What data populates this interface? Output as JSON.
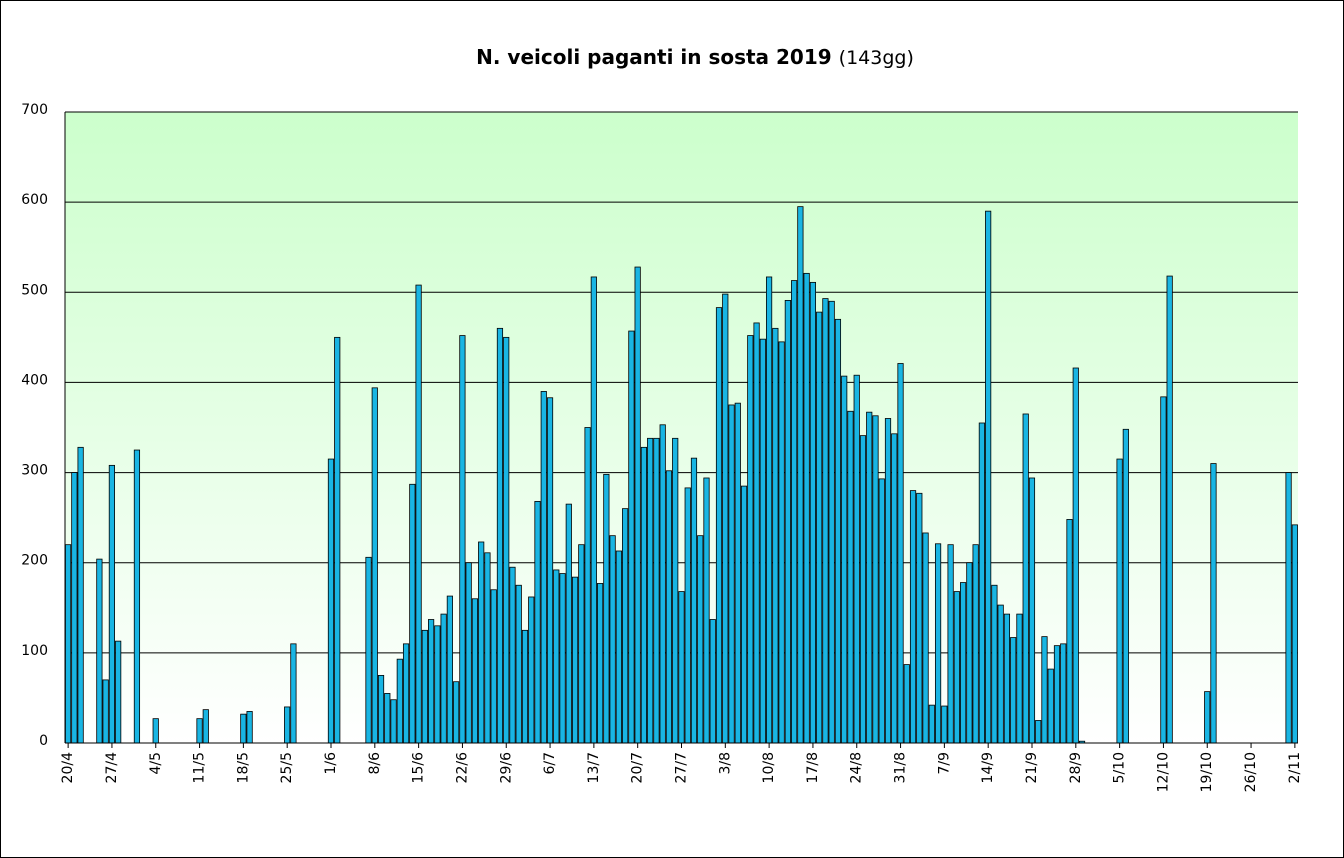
{
  "chart_data": {
    "type": "bar",
    "title": "N. veicoli paganti in sosta 2019",
    "title_note": "(143gg)",
    "color": "#19b5e3",
    "grid": true,
    "ylim": [
      0,
      700
    ],
    "yticks": [
      0,
      100,
      200,
      300,
      400,
      500,
      600,
      700
    ],
    "categories": [
      "20/4",
      null,
      null,
      null,
      null,
      null,
      null,
      "27/4",
      null,
      null,
      null,
      null,
      null,
      null,
      "4/5",
      null,
      null,
      null,
      null,
      null,
      null,
      "11/5",
      null,
      null,
      null,
      null,
      null,
      null,
      "18/5",
      null,
      null,
      null,
      null,
      null,
      null,
      "25/5",
      null,
      null,
      null,
      null,
      null,
      null,
      "1/6",
      null,
      null,
      null,
      null,
      null,
      null,
      "8/6",
      null,
      null,
      null,
      null,
      null,
      null,
      "15/6",
      null,
      null,
      null,
      null,
      null,
      null,
      "22/6",
      null,
      null,
      null,
      null,
      null,
      null,
      "29/6",
      null,
      null,
      null,
      null,
      null,
      null,
      "6/7",
      null,
      null,
      null,
      null,
      null,
      null,
      "13/7",
      null,
      null,
      null,
      null,
      null,
      null,
      "20/7",
      null,
      null,
      null,
      null,
      null,
      null,
      "27/7",
      null,
      null,
      null,
      null,
      null,
      null,
      "3/8",
      null,
      null,
      null,
      null,
      null,
      null,
      "10/8",
      null,
      null,
      null,
      null,
      null,
      null,
      "17/8",
      null,
      null,
      null,
      null,
      null,
      null,
      "24/8",
      null,
      null,
      null,
      null,
      null,
      null,
      "31/8",
      null,
      null,
      null,
      null,
      null,
      null,
      "7/9",
      null,
      null,
      null,
      null,
      null,
      null,
      "14/9",
      null,
      null,
      null,
      null,
      null,
      null,
      "21/9",
      null,
      null,
      null,
      null,
      null,
      null,
      "28/9",
      null,
      null,
      null,
      null,
      null,
      null,
      "5/10",
      null,
      null,
      null,
      null,
      null,
      null,
      "12/10",
      null,
      null,
      null,
      null,
      null,
      null,
      "19/10",
      null,
      null,
      null,
      null,
      null,
      null,
      "26/10",
      null,
      null,
      null,
      null,
      null,
      null,
      "2/11"
    ],
    "values": [
      220,
      300,
      328,
      null,
      null,
      204,
      70,
      308,
      113,
      null,
      null,
      325,
      null,
      null,
      27,
      null,
      null,
      null,
      null,
      null,
      null,
      27,
      37,
      null,
      null,
      null,
      null,
      null,
      32,
      35,
      null,
      null,
      null,
      null,
      null,
      40,
      110,
      null,
      null,
      null,
      null,
      null,
      315,
      450,
      null,
      null,
      null,
      null,
      206,
      394,
      75,
      55,
      48,
      93,
      110,
      287,
      508,
      125,
      137,
      130,
      143,
      163,
      68,
      452,
      200,
      160,
      223,
      211,
      170,
      460,
      450,
      195,
      175,
      125,
      162,
      268,
      390,
      383,
      192,
      188,
      265,
      184,
      220,
      350,
      517,
      177,
      298,
      230,
      213,
      260,
      457,
      528,
      328,
      338,
      338,
      353,
      302,
      338,
      168,
      283,
      316,
      230,
      294,
      137,
      483,
      498,
      375,
      377,
      285,
      452,
      466,
      448,
      517,
      460,
      445,
      491,
      513,
      595,
      521,
      511,
      478,
      493,
      490,
      470,
      407,
      368,
      408,
      341,
      367,
      363,
      293,
      360,
      343,
      421,
      87,
      280,
      277,
      233,
      42,
      221,
      41,
      220,
      168,
      178,
      200,
      220,
      355,
      590,
      175,
      153,
      143,
      117,
      143,
      365,
      294,
      25,
      118,
      82,
      108,
      110,
      248,
      416,
      2,
      null,
      null,
      null,
      null,
      null,
      315,
      348,
      null,
      null,
      null,
      null,
      null,
      384,
      518,
      null,
      null,
      null,
      null,
      null,
      57,
      310,
      null,
      null,
      null,
      null,
      null,
      null,
      null,
      null,
      null,
      null,
      null,
      300,
      242
    ]
  }
}
